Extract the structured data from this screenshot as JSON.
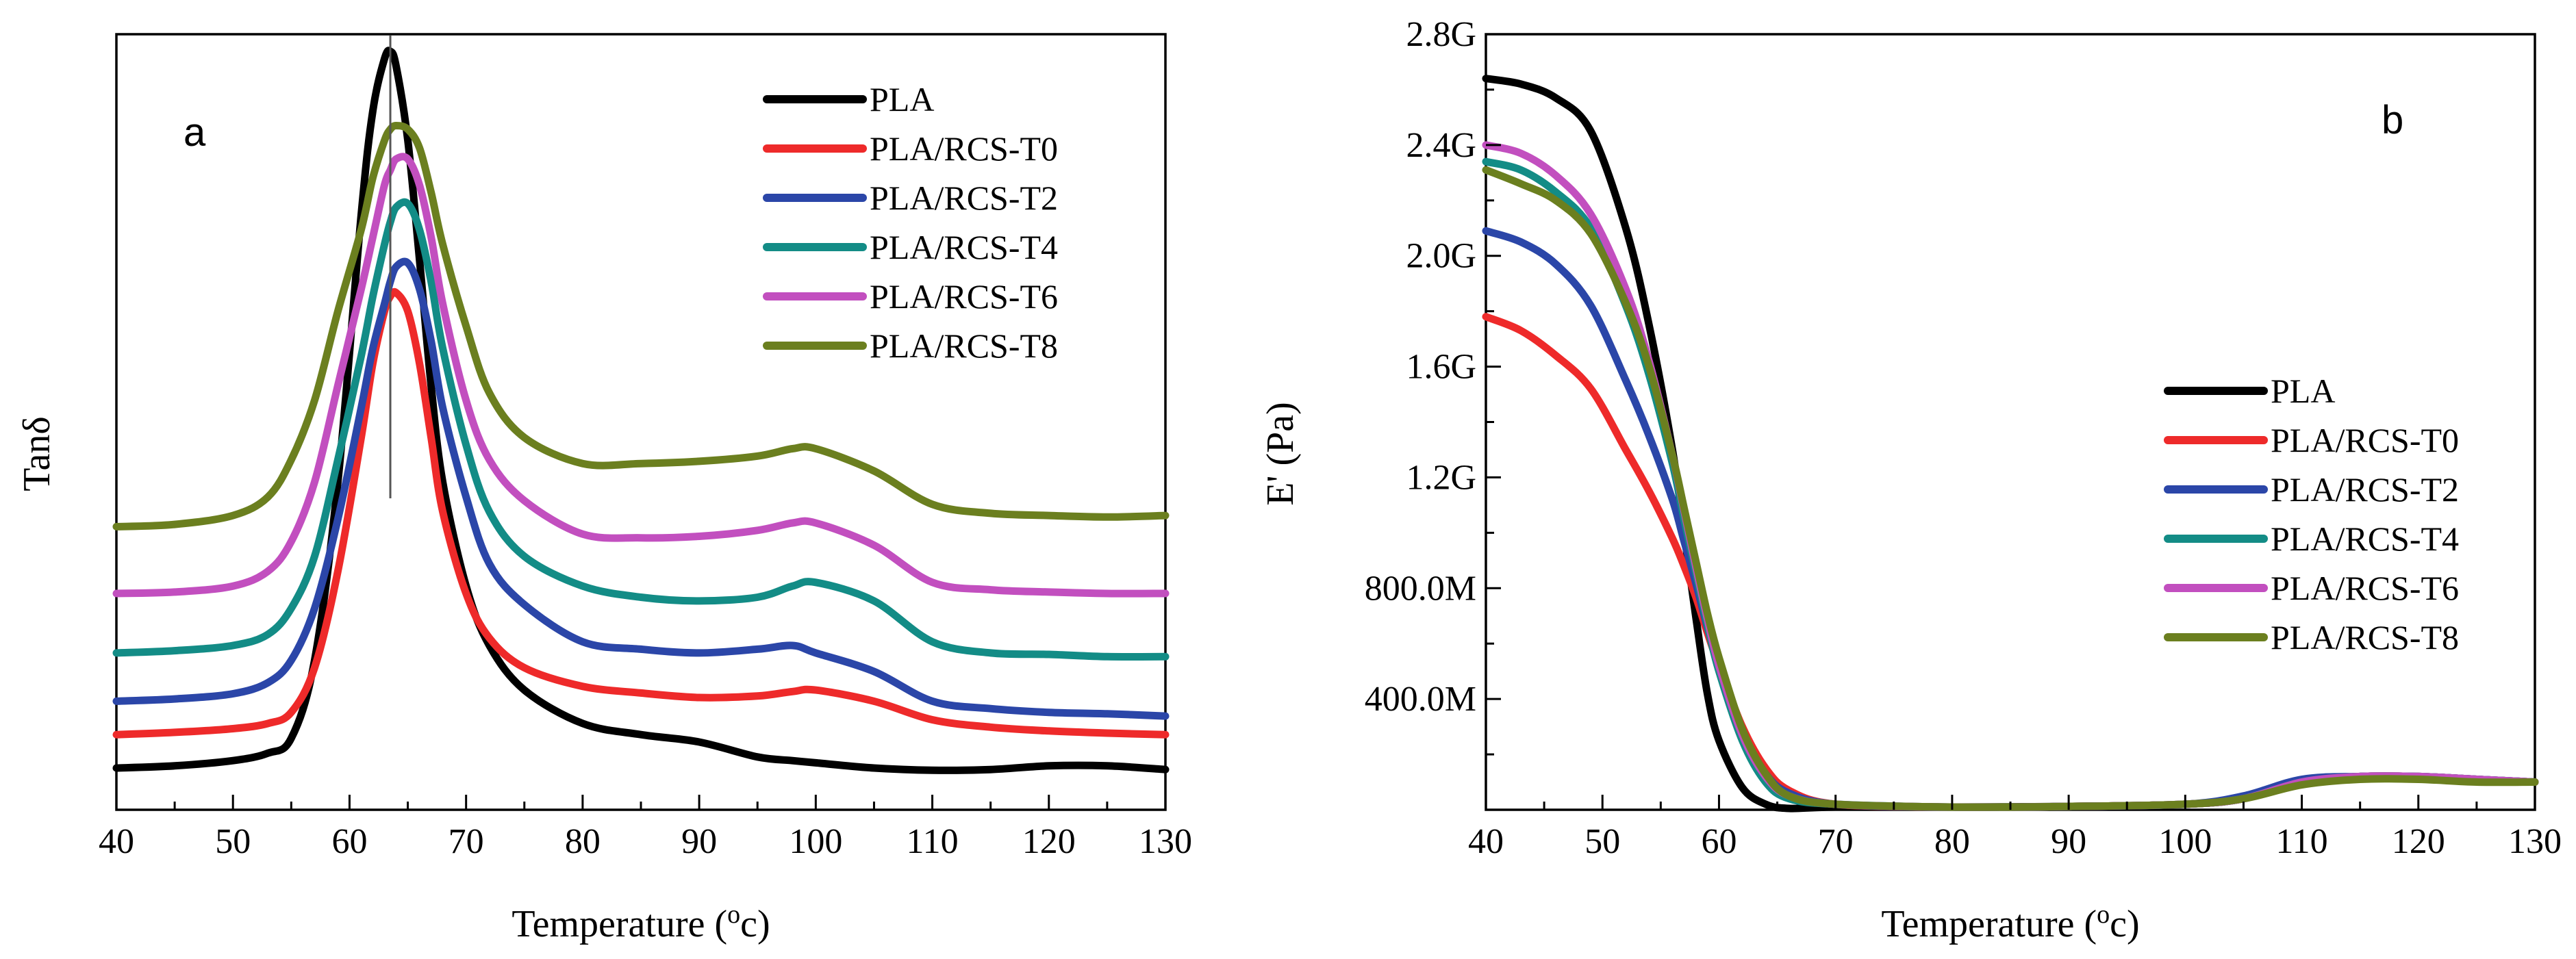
{
  "chart_data": [
    {
      "type": "line",
      "panel": "a",
      "title": "",
      "xlabel": "Temperature (",
      "xlabel_sup": "o",
      "xlabel_unit": "c)",
      "ylabel": "Tanδ",
      "xlim": [
        40,
        130
      ],
      "ylim": [
        0,
        100
      ],
      "x_ticks": [
        40,
        50,
        60,
        70,
        80,
        90,
        100,
        110,
        120,
        130
      ],
      "x_tick_labels": [
        "40",
        "50",
        "60",
        "70",
        "80",
        "90",
        "100",
        "110",
        "120",
        "130"
      ],
      "y_tick_labels": [],
      "y_values_note": "Tanδ curves vertically offset; arbitrary units",
      "reference_line_x": 63.5,
      "legend_position": "top-right",
      "grid": false,
      "x": [
        40,
        45,
        50,
        53,
        55,
        57,
        59,
        61,
        62,
        63,
        63.5,
        64,
        65,
        66,
        67,
        68,
        70,
        72,
        75,
        80,
        85,
        90,
        95,
        98,
        100,
        105,
        110,
        115,
        120,
        125,
        130
      ],
      "series": [
        {
          "name": "PLA",
          "color": "#000000",
          "values": [
            3.5,
            3.8,
            4.5,
            5.5,
            7.5,
            18,
            42,
            78,
            92,
            99,
            100,
            98,
            88,
            72,
            55,
            42,
            28,
            20,
            14,
            9.5,
            8,
            7,
            5,
            4.5,
            4.2,
            3.5,
            3.2,
            3.3,
            3.8,
            3.8,
            3.3
          ]
        },
        {
          "name": "PLA/RCS-T0",
          "color": "#ee2a2a",
          "values": [
            8,
            8.3,
            8.8,
            9.5,
            11,
            17,
            30,
            48,
            58,
            65,
            67,
            67.5,
            65,
            58,
            48,
            38,
            27,
            21,
            17,
            14.5,
            13.6,
            13,
            13.2,
            13.8,
            14,
            12.5,
            10,
            9,
            8.5,
            8.2,
            8
          ]
        },
        {
          "name": "PLA/RCS-T2",
          "color": "#2b46a8",
          "values": [
            12.5,
            12.8,
            13.5,
            15,
            18,
            25,
            37,
            52,
            60,
            66,
            69,
            71,
            71.5,
            68,
            61,
            52,
            40,
            31,
            25.5,
            20.5,
            19.5,
            19,
            19.5,
            20,
            19,
            16.5,
            12.5,
            11.5,
            11,
            10.8,
            10.5
          ]
        },
        {
          "name": "PLA/RCS-T4",
          "color": "#138c86",
          "values": [
            19,
            19.3,
            20,
            21.5,
            25,
            32,
            45,
            59,
            67,
            74,
            77,
            79,
            79.5,
            76,
            69,
            60,
            47,
            38,
            32,
            28,
            26.5,
            26,
            26.5,
            28,
            28.5,
            26,
            20.5,
            19,
            18.8,
            18.5,
            18.5
          ]
        },
        {
          "name": "PLA/RCS-T6",
          "color": "#c24fbf",
          "values": [
            27,
            27.2,
            28,
            30,
            34,
            42,
            55,
            68,
            75,
            82,
            84,
            85.5,
            85.5,
            82,
            75,
            66,
            53,
            45,
            39.5,
            35,
            34.5,
            34.7,
            35.5,
            36.5,
            36.5,
            33.5,
            28.5,
            27.5,
            27.2,
            27,
            27
          ]
        },
        {
          "name": "PLA/RCS-T8",
          "color": "#6b7f1f",
          "values": [
            36,
            36.3,
            37.5,
            40,
            45,
            53,
            65,
            76,
            83,
            88,
            89.5,
            90,
            89.5,
            87,
            81,
            74,
            63,
            54,
            48,
            44.5,
            44.5,
            44.8,
            45.5,
            46.5,
            46.5,
            43.5,
            39,
            37.8,
            37.5,
            37.3,
            37.5
          ]
        }
      ]
    },
    {
      "type": "line",
      "panel": "b",
      "title": "",
      "xlabel": "Temperature (",
      "xlabel_sup": "o",
      "xlabel_unit": "c)",
      "ylabel": "E' (Pa)",
      "xlim": [
        40,
        130
      ],
      "ylim": [
        0,
        2.8
      ],
      "y_unit": "G",
      "x_ticks": [
        40,
        50,
        60,
        70,
        80,
        90,
        100,
        110,
        120,
        130
      ],
      "x_tick_labels": [
        "40",
        "50",
        "60",
        "70",
        "80",
        "90",
        "100",
        "110",
        "120",
        "130"
      ],
      "y_ticks": [
        0.4,
        0.8,
        1.2,
        1.6,
        2.0,
        2.4,
        2.8
      ],
      "y_tick_labels": [
        "400.0M",
        "800.0M",
        "1.2G",
        "1.6G",
        "2.0G",
        "2.4G",
        "2.8G"
      ],
      "legend_position": "center-right",
      "grid": false,
      "x": [
        40,
        43,
        46,
        49,
        52,
        54,
        56,
        57,
        58,
        59,
        60,
        62,
        64,
        66,
        70,
        80,
        90,
        100,
        105,
        110,
        115,
        120,
        125,
        130
      ],
      "series": [
        {
          "name": "PLA",
          "color": "#000000",
          "values": [
            2.64,
            2.62,
            2.57,
            2.45,
            2.1,
            1.75,
            1.3,
            1.0,
            0.7,
            0.42,
            0.25,
            0.08,
            0.02,
            0.005,
            0.01,
            0.01,
            0.012,
            0.02,
            0.04,
            0.1,
            0.12,
            0.12,
            0.11,
            0.1
          ]
        },
        {
          "name": "PLA/RCS-T0",
          "color": "#ee2a2a",
          "values": [
            1.78,
            1.73,
            1.64,
            1.52,
            1.3,
            1.15,
            0.98,
            0.88,
            0.77,
            0.64,
            0.52,
            0.3,
            0.15,
            0.07,
            0.02,
            0.01,
            0.012,
            0.02,
            0.04,
            0.1,
            0.12,
            0.12,
            0.11,
            0.1
          ]
        },
        {
          "name": "PLA/RCS-T2",
          "color": "#2b46a8",
          "values": [
            2.09,
            2.05,
            1.97,
            1.82,
            1.55,
            1.35,
            1.12,
            0.97,
            0.82,
            0.66,
            0.52,
            0.28,
            0.13,
            0.06,
            0.02,
            0.01,
            0.012,
            0.02,
            0.05,
            0.11,
            0.12,
            0.12,
            0.11,
            0.1
          ]
        },
        {
          "name": "PLA/RCS-T4",
          "color": "#138c86",
          "values": [
            2.34,
            2.31,
            2.23,
            2.1,
            1.82,
            1.57,
            1.25,
            1.05,
            0.86,
            0.67,
            0.5,
            0.25,
            0.1,
            0.04,
            0.02,
            0.01,
            0.012,
            0.02,
            0.04,
            0.1,
            0.12,
            0.12,
            0.11,
            0.1
          ]
        },
        {
          "name": "PLA/RCS-T6",
          "color": "#c24fbf",
          "values": [
            2.4,
            2.37,
            2.29,
            2.15,
            1.88,
            1.62,
            1.28,
            1.08,
            0.88,
            0.69,
            0.52,
            0.27,
            0.12,
            0.05,
            0.02,
            0.01,
            0.012,
            0.02,
            0.04,
            0.1,
            0.12,
            0.12,
            0.11,
            0.1
          ]
        },
        {
          "name": "PLA/RCS-T8",
          "color": "#6b7f1f",
          "values": [
            2.31,
            2.26,
            2.2,
            2.08,
            1.83,
            1.6,
            1.28,
            1.09,
            0.9,
            0.71,
            0.55,
            0.29,
            0.13,
            0.05,
            0.02,
            0.01,
            0.012,
            0.02,
            0.04,
            0.09,
            0.11,
            0.11,
            0.1,
            0.1
          ]
        }
      ]
    }
  ]
}
